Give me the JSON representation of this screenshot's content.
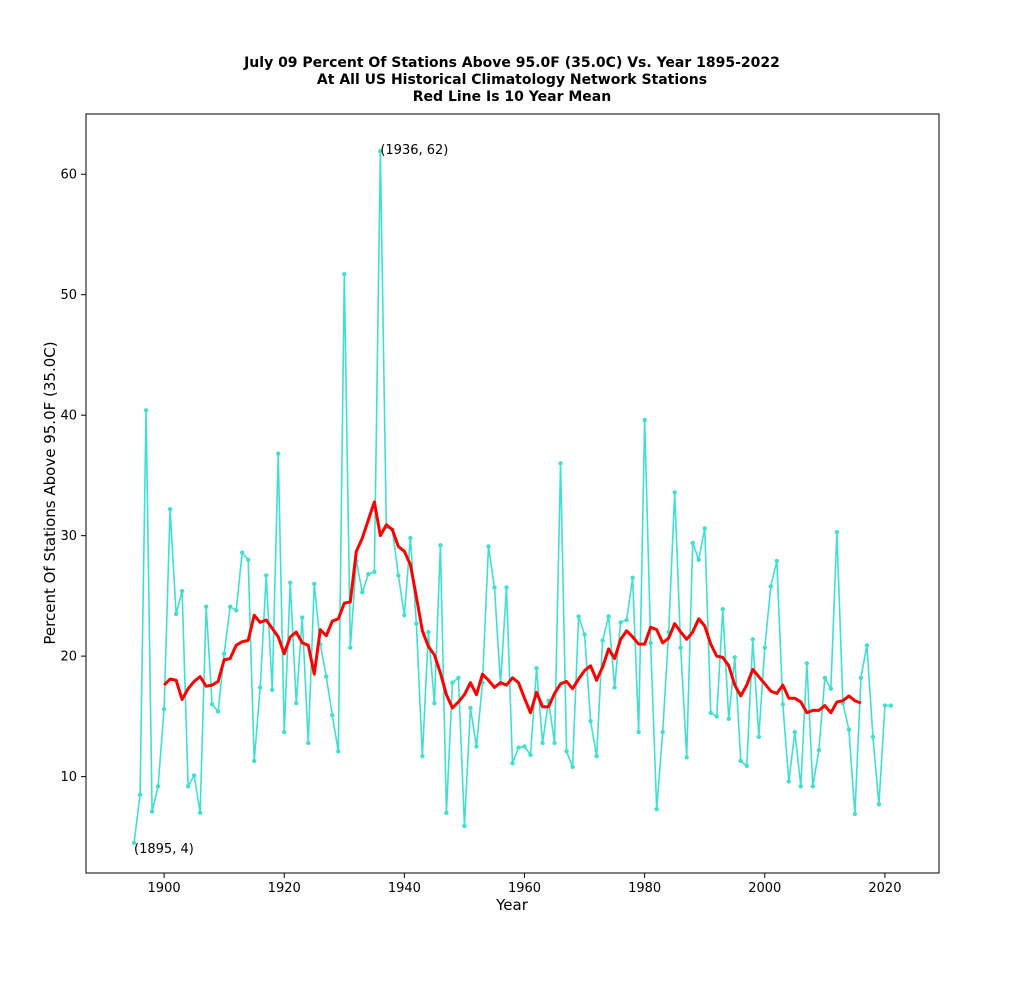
{
  "chart_data": {
    "type": "line",
    "title_lines": [
      "July 09 Percent Of Stations Above 95.0F (35.0C) Vs. Year 1895-2022",
      "At All US Historical Climatology Network Stations",
      "Red Line Is 10 Year Mean"
    ],
    "xlabel": "Year",
    "ylabel": "Percent Of Stations Above 95.0F (35.0C)",
    "xlim": [
      1887,
      2029
    ],
    "ylim": [
      2,
      65
    ],
    "x_ticks": [
      1900,
      1920,
      1940,
      1960,
      1980,
      2000,
      2020
    ],
    "y_ticks": [
      10,
      20,
      30,
      40,
      50,
      60
    ],
    "grid": false,
    "colors": {
      "series": "#40e0d0",
      "mean": "#ff0000"
    },
    "series": [
      {
        "name": "",
        "x_start": 1895,
        "values": [
          4.5,
          8.5,
          40.4,
          7.1,
          9.2,
          15.6,
          32.2,
          23.5,
          25.4,
          9.2,
          10.1,
          7.0,
          24.1,
          16.0,
          15.4,
          20.2,
          24.1,
          23.8,
          28.6,
          28.0,
          11.3,
          17.4,
          26.7,
          17.2,
          36.8,
          13.7,
          26.1,
          16.1,
          23.2,
          12.8,
          26.0,
          21.0,
          18.3,
          15.1,
          12.1,
          51.7,
          20.7,
          27.9,
          25.3,
          26.8,
          27.0,
          61.9,
          30.7,
          30.5,
          26.7,
          23.4,
          29.8,
          22.7,
          11.7,
          22.0,
          16.1,
          29.2,
          7.0,
          17.8,
          18.2,
          5.9,
          15.7,
          12.5,
          17.8,
          29.1,
          25.7,
          17.7,
          25.7,
          11.1,
          12.4,
          12.5,
          11.8,
          19.0,
          12.8,
          16.3,
          12.8,
          36.0,
          12.1,
          10.8,
          23.3,
          21.8,
          14.6,
          11.7,
          21.3,
          23.3,
          17.4,
          22.8,
          23.0,
          26.5,
          13.7,
          39.6,
          21.1,
          7.3,
          13.7,
          22.0,
          33.6,
          20.7,
          11.6,
          29.4,
          28.0,
          30.6,
          15.3,
          15.0,
          23.9,
          14.8,
          19.9,
          11.3,
          10.9,
          21.4,
          13.3,
          20.7,
          25.8,
          27.9,
          16.0,
          9.6,
          13.7,
          9.2,
          19.4,
          9.2,
          12.2,
          18.2,
          17.3,
          30.3,
          16.1,
          13.9,
          6.9,
          18.2,
          20.9,
          13.3,
          7.7,
          15.9,
          15.9
        ]
      },
      {
        "name": "",
        "x_start": 1900,
        "values": [
          17.6,
          18.1,
          18.0,
          16.4,
          17.3,
          17.9,
          18.3,
          17.5,
          17.6,
          17.9,
          19.7,
          19.8,
          20.9,
          21.2,
          21.3,
          23.4,
          22.8,
          23.0,
          22.3,
          21.6,
          20.2,
          21.6,
          22.0,
          21.1,
          20.9,
          18.5,
          22.2,
          21.7,
          22.9,
          23.1,
          24.4,
          24.5,
          28.7,
          29.8,
          31.3,
          32.8,
          30.0,
          30.9,
          30.5,
          29.1,
          28.7,
          27.6,
          24.9,
          22.1,
          20.8,
          20.1,
          18.6,
          16.8,
          15.7,
          16.2,
          16.8,
          17.8,
          16.8,
          18.5,
          18.0,
          17.4,
          17.8,
          17.6,
          18.2,
          17.8,
          16.5,
          15.3,
          17.0,
          15.8,
          15.8,
          16.9,
          17.7,
          17.9,
          17.3,
          18.1,
          18.8,
          19.2,
          18.0,
          19.1,
          20.6,
          19.8,
          21.4,
          22.1,
          21.6,
          21.0,
          21.0,
          22.4,
          22.2,
          21.1,
          21.5,
          22.7,
          22.0,
          21.4,
          22.0,
          23.1,
          22.5,
          21.0,
          20.0,
          19.9,
          19.2,
          17.6,
          16.7,
          17.6,
          18.9,
          18.3,
          17.7,
          17.1,
          16.9,
          17.6,
          16.5,
          16.5,
          16.2,
          15.3,
          15.5,
          15.5,
          15.9,
          15.3,
          16.2,
          16.3,
          16.7,
          16.3,
          16.1
        ]
      }
    ],
    "annotations": [
      {
        "text": "(1936, 62)",
        "x": 1936,
        "y": 62
      },
      {
        "text": "(1895, 4)",
        "x": 1895,
        "y": 4
      }
    ]
  }
}
